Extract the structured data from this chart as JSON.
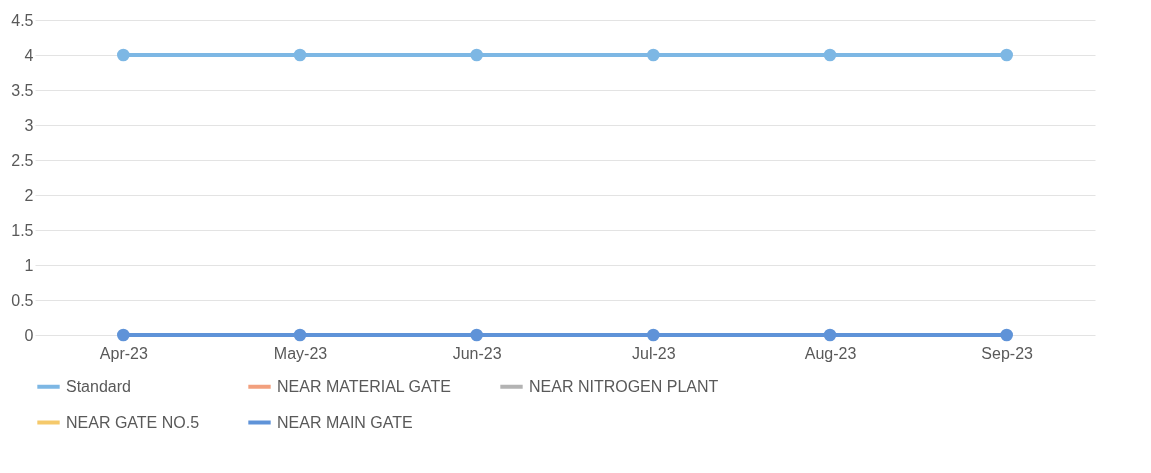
{
  "chart_data": {
    "type": "line",
    "categories": [
      "Apr-23",
      "May-23",
      "Jun-23",
      "Jul-23",
      "Aug-23",
      "Sep-23"
    ],
    "series": [
      {
        "name": "Standard",
        "color": "#7db7e4",
        "values": [
          4,
          4,
          4,
          4,
          4,
          4
        ]
      },
      {
        "name": "NEAR MATERIAL GATE",
        "color": "#f2a07e",
        "values": [
          null,
          null,
          null,
          null,
          null,
          null
        ]
      },
      {
        "name": "NEAR NITROGEN PLANT",
        "color": "#b3b3b3",
        "values": [
          null,
          null,
          null,
          null,
          null,
          null
        ]
      },
      {
        "name": "NEAR GATE NO.5",
        "color": "#f5c96b",
        "values": [
          null,
          null,
          null,
          null,
          null,
          null
        ]
      },
      {
        "name": "NEAR MAIN GATE",
        "color": "#5f93d8",
        "values": [
          0,
          0,
          0,
          0,
          0,
          0
        ]
      }
    ],
    "ylim": [
      0,
      4.5
    ],
    "yticks": [
      0,
      0.5,
      1,
      1.5,
      2,
      2.5,
      3,
      3.5,
      4,
      4.5
    ],
    "grid": "y",
    "legend": "bottom",
    "marker": "circle",
    "line_style": "solid"
  }
}
